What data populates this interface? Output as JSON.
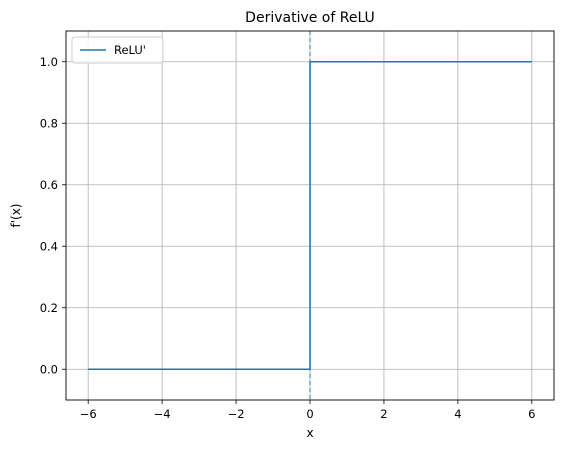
{
  "chart_data": {
    "type": "line",
    "title": "Derivative of ReLU",
    "xlabel": "x",
    "ylabel": "f'(x)",
    "xlim": [
      -6.6,
      6.6
    ],
    "ylim": [
      -0.1,
      1.1
    ],
    "xticks": [
      -6,
      -4,
      -2,
      0,
      2,
      4,
      6
    ],
    "xtick_labels": [
      "−6",
      "−4",
      "−2",
      "0",
      "2",
      "4",
      "6"
    ],
    "yticks": [
      0.0,
      0.2,
      0.4,
      0.6,
      0.8,
      1.0
    ],
    "ytick_labels": [
      "0.0",
      "0.2",
      "0.4",
      "0.6",
      "0.8",
      "1.0"
    ],
    "grid": true,
    "legend_position": "top-left",
    "series": [
      {
        "name": "ReLU'",
        "color": "#1f77b4",
        "x": [
          -6,
          0,
          0,
          6
        ],
        "y": [
          0,
          0,
          1,
          1
        ]
      }
    ],
    "annotations": [
      {
        "type": "vline",
        "x": 0,
        "style": "dashed",
        "color": "#1f77b4"
      }
    ]
  }
}
